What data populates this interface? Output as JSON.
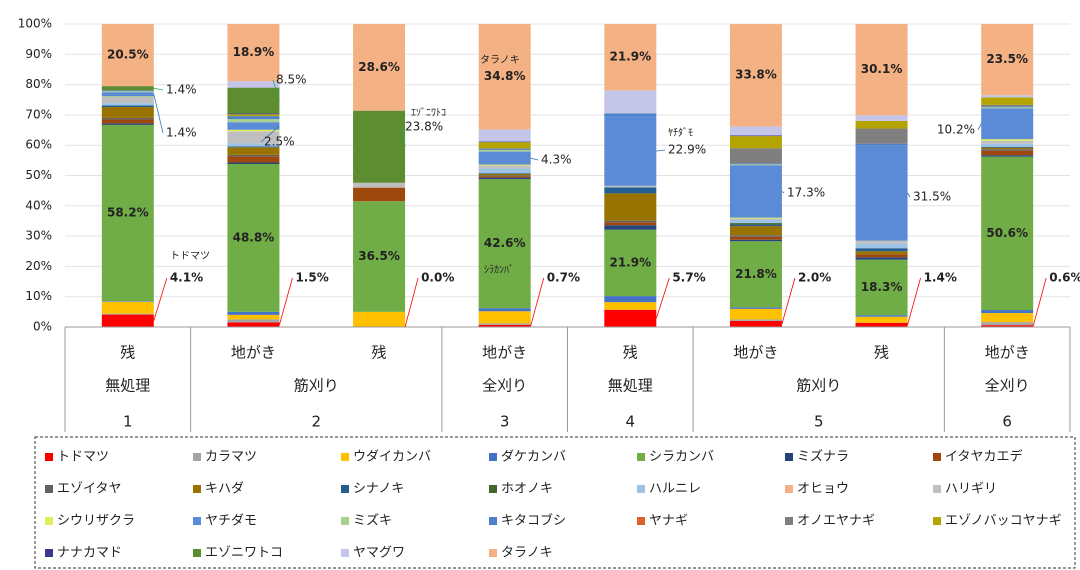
{
  "chart_data": {
    "type": "stacked_bar",
    "categories": [
      "残",
      "地がき",
      "残",
      "地がき",
      "残",
      "地がき",
      "残",
      "地がき"
    ],
    "treatments": [
      {
        "label": "無処理",
        "span": 1
      },
      {
        "label": "筋刈り",
        "span": 2
      },
      {
        "label": "全刈り",
        "span": 1
      },
      {
        "label": "無処理",
        "span": 1
      },
      {
        "label": "筋刈り",
        "span": 2
      },
      {
        "label": "全刈り",
        "span": 1
      }
    ],
    "sites": [
      {
        "label": "1",
        "span": 1
      },
      {
        "label": "2",
        "span": 2
      },
      {
        "label": "3",
        "span": 1
      },
      {
        "label": "4",
        "span": 1
      },
      {
        "label": "5",
        "span": 2
      },
      {
        "label": "6",
        "span": 1
      }
    ],
    "ylim": [
      0,
      100
    ],
    "yticks": [
      {
        "value": 0,
        "label": "0%"
      },
      {
        "value": 10,
        "label": "10%"
      },
      {
        "value": 20,
        "label": "20%"
      },
      {
        "value": 30,
        "label": "30%"
      },
      {
        "value": 40,
        "label": "40%"
      },
      {
        "value": 50,
        "label": "50%"
      },
      {
        "value": 60,
        "label": "60%"
      },
      {
        "value": 70,
        "label": "70%"
      },
      {
        "value": 80,
        "label": "80%"
      },
      {
        "value": 90,
        "label": "90%"
      },
      {
        "value": 100,
        "label": "100%"
      }
    ],
    "grid": true,
    "series": [
      {
        "name": "トドマツ",
        "color": "#ff0000",
        "values": [
          4.1,
          1.5,
          0.0,
          0.7,
          5.7,
          2.0,
          1.4,
          0.6
        ],
        "value_labels": [
          "4.1%",
          "1.5%",
          "0.0%",
          "0.7%",
          "5.7%",
          "2.0%",
          "1.4%",
          "0.6%"
        ]
      },
      {
        "name": "カラマツ",
        "color": "#a5a5a5",
        "values": [
          0.3,
          1.0,
          0,
          0.5,
          0,
          0.5,
          0,
          1.0
        ]
      },
      {
        "name": "ウダイカンバ",
        "color": "#ffc000",
        "values": [
          3.9,
          1.5,
          5.0,
          4.0,
          2.5,
          3.5,
          2.0,
          3.0
        ]
      },
      {
        "name": "ダケカンバ",
        "color": "#4472c4",
        "values": [
          0.2,
          1.0,
          0,
          1.0,
          2.0,
          0.5,
          0.5,
          1.0
        ]
      },
      {
        "name": "シラカンバ",
        "color": "#70ad47",
        "values": [
          58.2,
          48.8,
          36.5,
          42.6,
          21.9,
          21.8,
          18.3,
          50.6
        ],
        "value_labels": [
          "58.2%",
          "48.8%",
          "36.5%",
          "42.6%",
          "21.9%",
          "21.8%",
          "18.3%",
          "50.6%"
        ]
      },
      {
        "name": "ミズナラ",
        "color": "#264478",
        "values": [
          0.5,
          0.5,
          0,
          0.5,
          1.5,
          0.5,
          0.8,
          0.5
        ]
      },
      {
        "name": "イタヤカエデ",
        "color": "#9e480e",
        "values": [
          1.3,
          2.0,
          4.5,
          0.5,
          1.0,
          1.0,
          1.0,
          1.5
        ]
      },
      {
        "name": "エゾイタヤ",
        "color": "#636363",
        "values": [
          0.5,
          0.5,
          0,
          0.3,
          0.5,
          0.5,
          0,
          0.5
        ]
      },
      {
        "name": "キハダ",
        "color": "#997300",
        "values": [
          3.6,
          2.5,
          0,
          0.5,
          9.0,
          3.0,
          1.0,
          0.5
        ]
      },
      {
        "name": "シナノキ",
        "color": "#255e91",
        "values": [
          0.5,
          0.3,
          0,
          0.2,
          2.0,
          0.5,
          1.0,
          0.3
        ]
      },
      {
        "name": "ホオノキ",
        "color": "#43682b",
        "values": [
          0,
          0,
          0,
          0,
          0,
          0.5,
          0,
          0
        ]
      },
      {
        "name": "ハルニレ",
        "color": "#9dc3e6",
        "values": [
          0.8,
          1.0,
          0,
          1.5,
          0,
          1.0,
          1.5,
          1.0
        ]
      },
      {
        "name": "オヒョウ",
        "color": "#f4b183",
        "values": [
          0,
          0,
          0,
          0,
          0,
          0,
          0,
          0
        ]
      },
      {
        "name": "ハリギリ",
        "color": "#bfbfbf",
        "values": [
          2.0,
          4.0,
          1.6,
          1.0,
          0.5,
          0.5,
          1.0,
          1.0
        ]
      },
      {
        "name": "シウリザクラ",
        "color": "#e2ef5a",
        "values": [
          0.2,
          0.5,
          0,
          0.3,
          0,
          0.3,
          0,
          0.5
        ]
      },
      {
        "name": "ヤチダモ",
        "color": "#5b8ad6",
        "values": [
          1.4,
          2.5,
          0,
          4.3,
          22.9,
          17.3,
          31.5,
          10.2
        ],
        "value_labels": [
          "1.4%",
          "2.5%",
          null,
          "4.3%",
          "22.9%",
          "17.3%",
          "31.5%",
          "10.2%"
        ]
      },
      {
        "name": "ミズキ",
        "color": "#a9d18e",
        "values": [
          0.3,
          1.0,
          0,
          0.5,
          0,
          0.3,
          0,
          0.3
        ]
      },
      {
        "name": "キタコブシ",
        "color": "#4f81c7",
        "values": [
          0.3,
          1.0,
          0,
          0.3,
          1.0,
          0.3,
          0.5,
          0.3
        ]
      },
      {
        "name": "ヤナギ",
        "color": "#d9632b",
        "values": [
          0,
          0,
          0,
          0,
          0,
          0,
          0,
          0
        ]
      },
      {
        "name": "オノエヤナギ",
        "color": "#7f7f7f",
        "values": [
          0,
          0,
          0,
          0.3,
          0,
          5.0,
          5.0,
          0.5
        ]
      },
      {
        "name": "エゾノバッコヤナギ",
        "color": "#b4a400",
        "values": [
          0,
          0.6,
          0,
          2.0,
          0,
          4.0,
          2.5,
          2.5
        ]
      },
      {
        "name": "ナナカマド",
        "color": "#3a3a8c",
        "values": [
          0,
          0.3,
          0,
          0.2,
          0,
          0.2,
          0,
          0
        ]
      },
      {
        "name": "エゾニワトコ",
        "color": "#5e8c31",
        "values": [
          1.4,
          8.5,
          23.8,
          0,
          0,
          0,
          0,
          0
        ],
        "value_labels": [
          "1.4%",
          "8.5%",
          "23.8%",
          null,
          null,
          null,
          null,
          null
        ]
      },
      {
        "name": "ヤマグワ",
        "color": "#c5c5ea",
        "values": [
          0,
          2.1,
          0,
          4.0,
          7.6,
          3.0,
          1.9,
          0.7
        ]
      },
      {
        "name": "タラノキ",
        "color": "#f4b183",
        "values": [
          20.5,
          18.9,
          28.6,
          34.8,
          21.9,
          33.8,
          30.1,
          23.5
        ],
        "value_labels": [
          "20.5%",
          "18.9%",
          "28.6%",
          "34.8%",
          "21.9%",
          "33.8%",
          "30.1%",
          "23.5%"
        ]
      }
    ],
    "annotations": [
      "トドマツ",
      "ｴｿﾞﾆﾜﾄｺ",
      "タラノキ",
      "ｼﾗｶﾝﾊﾞ",
      "ﾔﾁﾀﾞﾓ"
    ]
  }
}
